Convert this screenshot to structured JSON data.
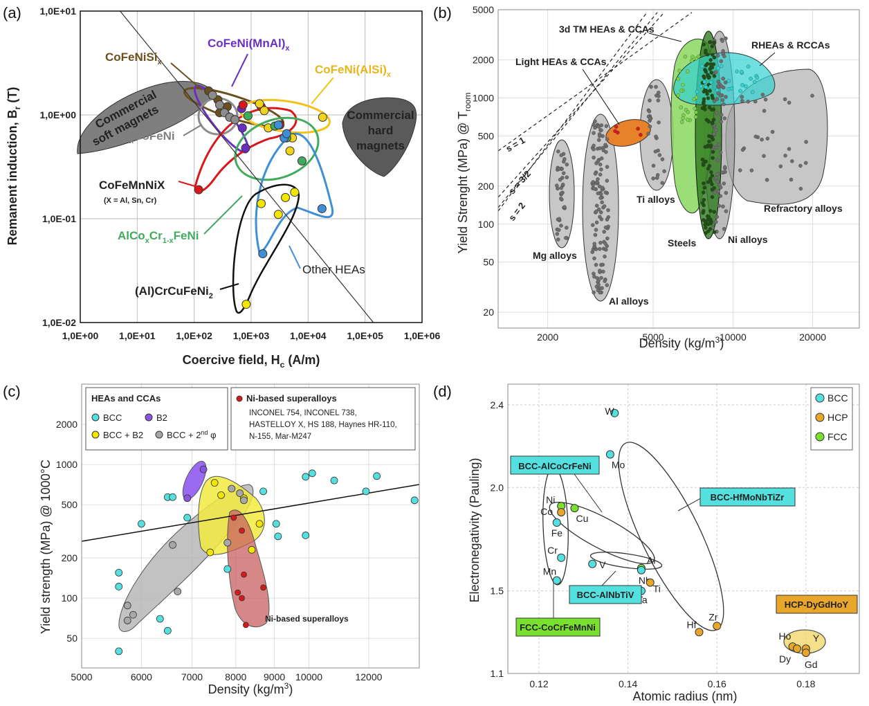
{
  "chart_data": [
    {
      "panel": "(a)",
      "type": "scatter",
      "xlabel": "Coercive field, H",
      "xlabel_sub": "c",
      "xlabel_unit": " (A/m)",
      "ylabel": "Remanent induction, B",
      "ylabel_sub": "r",
      "ylabel_unit": " (T)",
      "xscale": "log",
      "yscale": "log",
      "xlim": [
        1,
        1000000
      ],
      "ylim": [
        0.01,
        10
      ],
      "xticks": [
        "1,0E+00",
        "1,0E+01",
        "1,0E+02",
        "1,0E+03",
        "1,0E+04",
        "1,0E+05",
        "1,0E+06"
      ],
      "yticks": [
        "1,0E-02",
        "1,0E-01",
        "1,0E+00",
        "1,0E+01"
      ],
      "grid": true,
      "labels": {
        "cofenisi": "CoFeNiSi",
        "cofenisi_sub": "x",
        "cofenimnal": "CoFeNi(MnAl)",
        "cofenimnal_sub": "x",
        "cofenialsi": "CoFeNi(AlSi)",
        "cofenialsi_sub": "x",
        "soft1": "Commercial",
        "soft2": "soft magnets",
        "hard1": "Commercial",
        "hard2": "hard",
        "hard3": "magnets",
        "alcofeni_a": "Al",
        "alcofeni_sub": "x",
        "alcofeni_b": "CoFeNi",
        "cofemnnix": "CoFeMnNiX",
        "cofemnnix_note": "(X = Al, Sn, Cr)",
        "alcocr_a": "AlCo",
        "alcocr_sub1": "x",
        "alcocr_b": "Cr",
        "alcocr_sub2": "1-x",
        "alcocr_c": "FeNi",
        "other": "Other HEAs",
        "crcu_a": "(Al)CrCuFeNi",
        "crcu_sub": "2"
      },
      "points": [
        {
          "group": "CoFeNiSix",
          "color": "#6b4f1d",
          "pts": [
            [
              180,
              1.7
            ],
            [
              260,
              1.4
            ],
            [
              380,
              1.2
            ],
            [
              280,
              1.05
            ]
          ]
        },
        {
          "group": "CoFeNi(MnAl)x",
          "color": "#6a2fbf",
          "pts": [
            [
              680,
              1.15
            ],
            [
              700,
              0.75
            ],
            [
              800,
              0.48
            ]
          ]
        },
        {
          "group": "AlxCoFeNi",
          "color": "#8c8c8c",
          "pts": [
            [
              210,
              1.55
            ],
            [
              280,
              1.25
            ],
            [
              340,
              1.05
            ],
            [
              420,
              0.95
            ],
            [
              520,
              0.9
            ]
          ]
        },
        {
          "group": "CoFeMnNiX",
          "color": "#d7191c",
          "pts": [
            [
              120,
              0.19
            ],
            [
              720,
              1.25
            ],
            [
              3200,
              0.8
            ],
            [
              1500,
              1.2
            ]
          ]
        },
        {
          "group": "CoFeNi(AlSi)x",
          "color": "#f2d31b",
          "pts": [
            [
              1400,
              1.28
            ],
            [
              2000,
              0.75
            ],
            [
              1700,
              1.1
            ],
            [
              5300,
              0.6
            ],
            [
              18000,
              0.95
            ],
            [
              4800,
              0.45
            ]
          ]
        },
        {
          "group": "AlCoxCr1-xFeNi",
          "color": "#41ab5d",
          "pts": [
            [
              880,
              0.98
            ],
            [
              4200,
              0.6
            ],
            [
              7800,
              0.36
            ],
            [
              2600,
              0.78
            ]
          ]
        },
        {
          "group": "Other HEAs",
          "color": "#3f8fd6",
          "pts": [
            [
              1600,
              0.046
            ],
            [
              17500,
              0.125
            ],
            [
              3800,
              0.6
            ],
            [
              4200,
              0.66
            ],
            [
              3000,
              0.8
            ]
          ]
        },
        {
          "group": "(Al)CrCuFeNi2",
          "color": "#f5e600",
          "pts": [
            [
              820,
              0.015
            ],
            [
              1500,
              0.14
            ],
            [
              3000,
              0.11
            ],
            [
              4000,
              0.16
            ],
            [
              5800,
              0.18
            ]
          ]
        }
      ],
      "line": [
        [
          5,
          10
        ],
        [
          140000,
          0.01
        ]
      ]
    },
    {
      "panel": "(b)",
      "type": "scatter",
      "xlabel": "Density (kg/m",
      "xlabel_sup": "3",
      "xlabel_end": ")",
      "ylabel": "Yield Strenght (MPa) @ T",
      "ylabel_sub": "room",
      "xscale": "log",
      "yscale": "log",
      "xlim": [
        1300,
        30000
      ],
      "ylim": [
        15,
        5000
      ],
      "xticks": [
        "2000",
        "5000",
        "10000",
        "20000"
      ],
      "yticks": [
        "20",
        "50",
        "100",
        "200",
        "500",
        "1000",
        "2000",
        "5000"
      ],
      "groups": [
        {
          "name": "Mg alloys",
          "color": "#8c8c8c"
        },
        {
          "name": "Al alloys",
          "color": "#8c8c8c"
        },
        {
          "name": "Ti alloys",
          "color": "#8c8c8c"
        },
        {
          "name": "Steels",
          "color": "#8c8c8c"
        },
        {
          "name": "Ni alloys",
          "color": "#8c8c8c"
        },
        {
          "name": "Refractory alloys",
          "color": "#8c8c8c"
        },
        {
          "name": "Light HEAs & CCAs",
          "color": "#e8822a"
        },
        {
          "name": "3d TM HEAs & CCAs",
          "color": "#7ad14a"
        },
        {
          "name": "RHEAs & RCCAs",
          "color": "#33d1d1"
        }
      ],
      "guide_lines": [
        "s = 1",
        "s = 3/2",
        "s = 2"
      ]
    },
    {
      "panel": "(c)",
      "type": "scatter",
      "xlabel": "Density (kg/m",
      "xlabel_sup": "3",
      "xlabel_end": ")",
      "ylabel": "Yield strength (MPa) @ 1000°C",
      "xscale": "log",
      "yscale": "log",
      "xlim": [
        5000,
        14000
      ],
      "ylim": [
        30,
        4000
      ],
      "xticks": [
        "5000",
        "6000",
        "7000",
        "8000",
        "9000",
        "10000",
        "12000"
      ],
      "yticks": [
        "50",
        "100",
        "200",
        "500",
        "1000",
        "2000"
      ],
      "legend1_title": "HEAs and CCAs",
      "legend1_items": [
        "BCC",
        "B2",
        "BCC + B2",
        "BCC + 2",
        "nd",
        " φ"
      ],
      "legend2_title": "Ni-based superalloys",
      "legend2_lines": [
        "INCONEL 754, INCONEL 738,",
        "HASTELLOY X, HS 188, Haynes HR-110,",
        "N-155, Mar-M247"
      ],
      "ni_label": "Ni-based superalloys",
      "series": [
        {
          "name": "BCC",
          "color": "#55e0e0",
          "pts": [
            [
              5600,
              155
            ],
            [
              5600,
              122
            ],
            [
              5600,
              40
            ],
            [
              6000,
              360
            ],
            [
              6350,
              70
            ],
            [
              6500,
              570
            ],
            [
              6500,
              57
            ],
            [
              6600,
              570
            ],
            [
              6900,
              400
            ],
            [
              7800,
              165
            ],
            [
              8700,
              630
            ],
            [
              9050,
              360
            ],
            [
              9100,
              290
            ],
            [
              9900,
              810
            ],
            [
              9900,
              295
            ],
            [
              10100,
              860
            ],
            [
              10800,
              760
            ],
            [
              11900,
              630
            ],
            [
              12300,
              820
            ],
            [
              13800,
              540
            ]
          ]
        },
        {
          "name": "B2",
          "color": "#8a55e0",
          "pts": [
            [
              6900,
              560
            ],
            [
              7250,
              920
            ]
          ]
        },
        {
          "name": "BCC + B2",
          "color": "#f2e600",
          "pts": [
            [
              7500,
              730
            ],
            [
              7650,
              590
            ],
            [
              8400,
              230
            ],
            [
              8600,
              360
            ],
            [
              8200,
              560
            ],
            [
              7400,
              220
            ]
          ]
        },
        {
          "name": "BCC + 2nd φ",
          "color": "#a8a8a8",
          "pts": [
            [
              5750,
              88
            ],
            [
              5750,
              68
            ],
            [
              5850,
              75
            ],
            [
              6600,
              250
            ],
            [
              6700,
              112
            ],
            [
              7800,
              260
            ],
            [
              7900,
              660
            ],
            [
              8100,
              610
            ],
            [
              8200,
              540
            ]
          ]
        },
        {
          "name": "Ni-based superalloys",
          "color": "#d7191c",
          "pts": [
            [
              7950,
              400
            ],
            [
              8150,
              320
            ],
            [
              8200,
              150
            ],
            [
              8050,
              110
            ],
            [
              8150,
              100
            ],
            [
              8250,
              63
            ],
            [
              8700,
              120
            ]
          ]
        }
      ]
    },
    {
      "panel": "(d)",
      "type": "scatter",
      "xlabel": "Atomic radius (nm)",
      "ylabel": "Electronegativity (Pauling)",
      "xlim": [
        0.113,
        0.192
      ],
      "ylim": [
        1.1,
        2.5
      ],
      "xticks": [
        "0.12",
        "0.14",
        "0.16",
        "0.18"
      ],
      "yticks": [
        "1.1",
        "1.5",
        "2.0",
        "2.4"
      ],
      "legend": [
        {
          "name": "BCC",
          "color": "#55e0e0"
        },
        {
          "name": "HCP",
          "color": "#e8a62a"
        },
        {
          "name": "FCC",
          "color": "#7ae030"
        }
      ],
      "boxes": {
        "bcc_alcocrfeni": "BCC-AlCoCrFeNi",
        "bcc_hfmonbtizr": "BCC-HfMoNbTiZr",
        "bcc_alnbtiv": "BCC-AlNbTiV",
        "fcc_cocrfemnni": "FCC-CoCrFeMnNi",
        "hcp_dygdhoy": "HCP-DyGdHoY"
      },
      "elements": [
        {
          "el": "W",
          "x": 0.137,
          "y": 2.36,
          "phase": "BCC"
        },
        {
          "el": "Mo",
          "x": 0.136,
          "y": 2.16,
          "phase": "BCC"
        },
        {
          "el": "Ni",
          "x": 0.125,
          "y": 1.91,
          "phase": "FCC"
        },
        {
          "el": "Co",
          "x": 0.125,
          "y": 1.88,
          "phase": "HCP"
        },
        {
          "el": "Cu",
          "x": 0.128,
          "y": 1.9,
          "phase": "FCC"
        },
        {
          "el": "Fe",
          "x": 0.124,
          "y": 1.83,
          "phase": "BCC"
        },
        {
          "el": "Cr",
          "x": 0.125,
          "y": 1.66,
          "phase": "BCC"
        },
        {
          "el": "Mn",
          "x": 0.124,
          "y": 1.55,
          "phase": "BCC"
        },
        {
          "el": "V",
          "x": 0.132,
          "y": 1.63,
          "phase": "BCC"
        },
        {
          "el": "Al",
          "x": 0.143,
          "y": 1.61,
          "phase": "FCC"
        },
        {
          "el": "Nb",
          "x": 0.143,
          "y": 1.6,
          "phase": "BCC"
        },
        {
          "el": "Ti",
          "x": 0.145,
          "y": 1.54,
          "phase": "HCP"
        },
        {
          "el": "Ta",
          "x": 0.143,
          "y": 1.5,
          "phase": "BCC"
        },
        {
          "el": "Hf",
          "x": 0.156,
          "y": 1.3,
          "phase": "HCP"
        },
        {
          "el": "Zr",
          "x": 0.16,
          "y": 1.33,
          "phase": "HCP"
        },
        {
          "el": "Ho",
          "x": 0.177,
          "y": 1.23,
          "phase": "HCP"
        },
        {
          "el": "Y",
          "x": 0.18,
          "y": 1.22,
          "phase": "HCP"
        },
        {
          "el": "Dy",
          "x": 0.178,
          "y": 1.22,
          "phase": "HCP"
        },
        {
          "el": "Gd",
          "x": 0.18,
          "y": 1.2,
          "phase": "HCP"
        }
      ]
    }
  ]
}
